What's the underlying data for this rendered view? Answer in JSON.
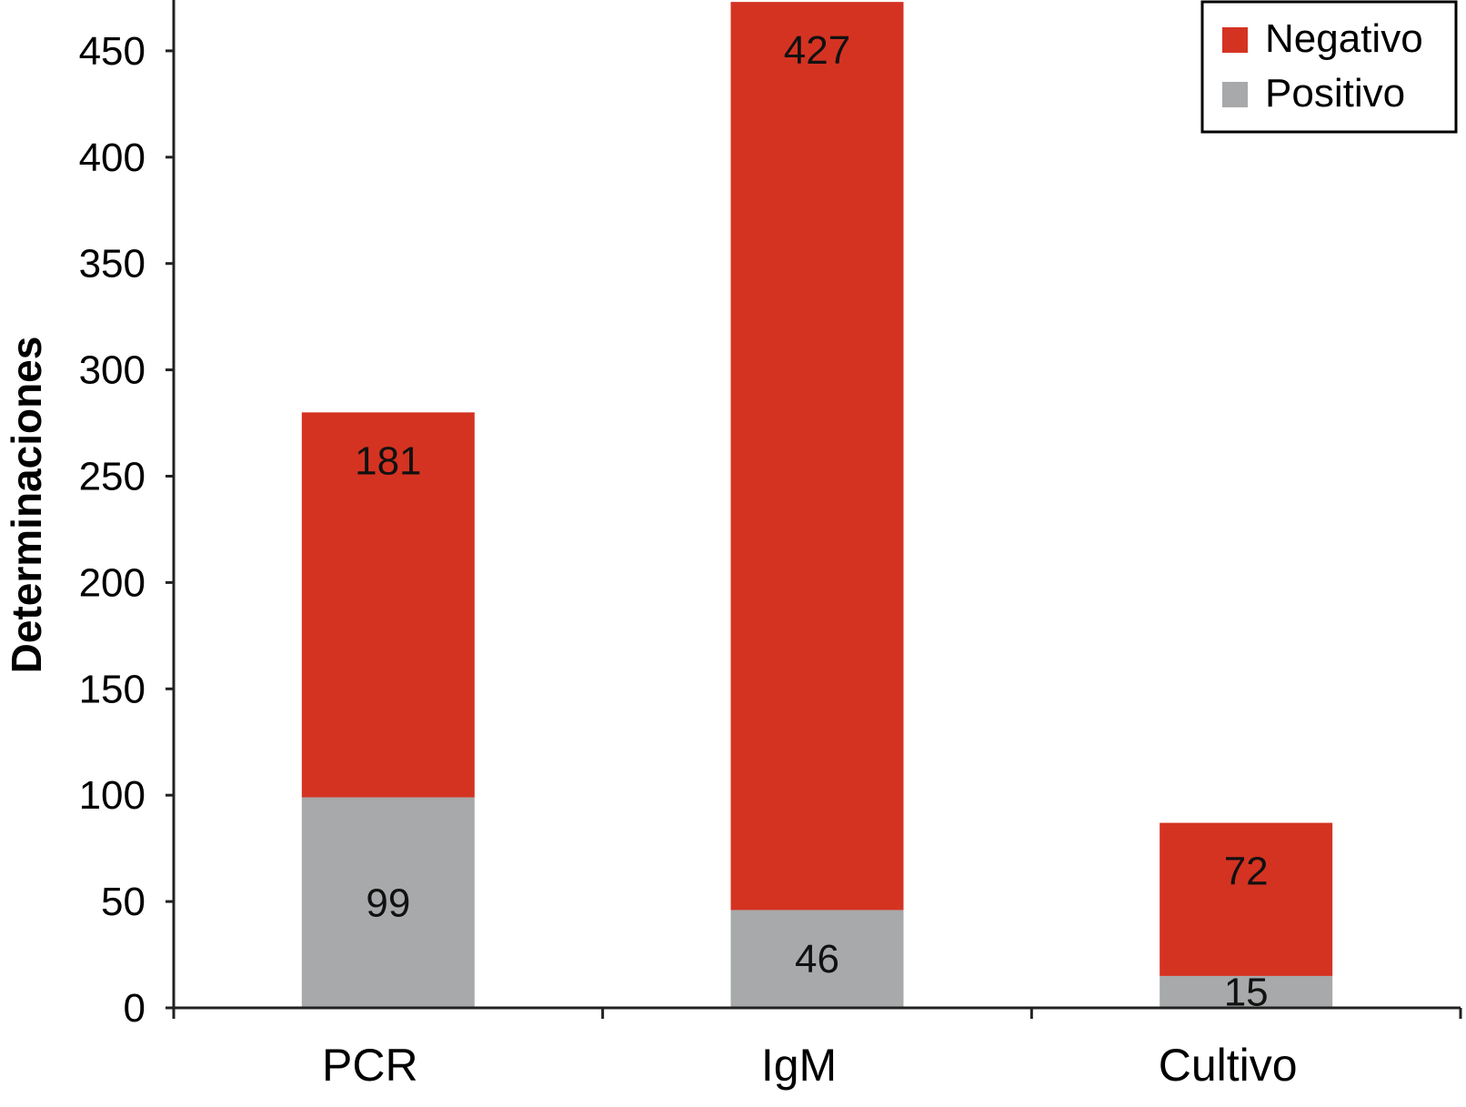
{
  "chart_data": {
    "type": "bar",
    "stacked": true,
    "categories": [
      "PCR",
      "IgM",
      "Cultivo"
    ],
    "series": [
      {
        "name": "Positivo",
        "values": [
          99,
          46,
          15
        ],
        "color": "#a7a9aa"
      },
      {
        "name": "Negativo",
        "values": [
          181,
          427,
          72
        ],
        "color": "#d43322"
      }
    ],
    "title": "",
    "xlabel": "",
    "ylabel": "Determinaciones",
    "ylim": [
      0,
      470
    ],
    "yticks": [
      0,
      50,
      100,
      150,
      200,
      250,
      300,
      350,
      400,
      450
    ],
    "legend": {
      "position": "top-right",
      "order": [
        "Negativo",
        "Positivo"
      ]
    },
    "grid": false
  }
}
